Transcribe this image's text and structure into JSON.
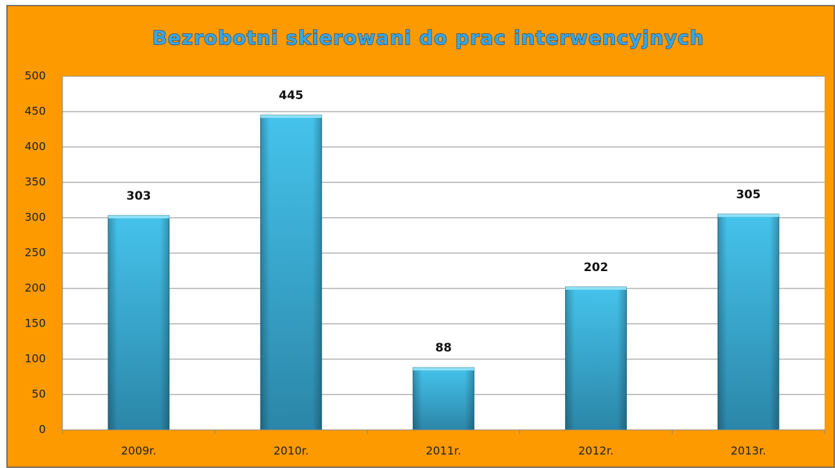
{
  "chart_data": {
    "type": "bar",
    "title": "Bezrobotni skierowani do prac interwencyjnych",
    "categories": [
      "2009r.",
      "2010r.",
      "2011r.",
      "2012r.",
      "2013r."
    ],
    "values": [
      303,
      445,
      88,
      202,
      305
    ],
    "color": "#3fbfe6",
    "ylim": [
      0,
      500
    ],
    "yticks": [
      0,
      50,
      100,
      150,
      200,
      250,
      300,
      350,
      400,
      450,
      500
    ],
    "grid": true
  }
}
